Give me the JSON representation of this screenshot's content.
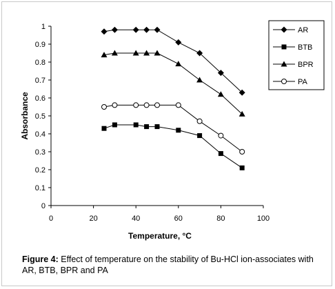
{
  "chart_data": {
    "type": "line",
    "title": "",
    "xlabel": "Temperature, °C",
    "ylabel": "Absorbance",
    "xlim": [
      0,
      100
    ],
    "ylim": [
      0,
      1
    ],
    "xticks": [
      "0",
      "20",
      "40",
      "60",
      "80",
      "100"
    ],
    "yticks": [
      "0",
      "0.1",
      "0.2",
      "0.3",
      "0.4",
      "0.5",
      "0.6",
      "0.7",
      "0.8",
      "0.9",
      "1"
    ],
    "grid": false,
    "legend_position": "top-right",
    "x": [
      25,
      30,
      40,
      45,
      50,
      60,
      70,
      80,
      90
    ],
    "series": [
      {
        "name": "AR",
        "marker": "diamond",
        "values": [
          0.97,
          0.98,
          0.98,
          0.98,
          0.98,
          0.91,
          0.85,
          0.74,
          0.63
        ]
      },
      {
        "name": "BTB",
        "marker": "square",
        "values": [
          0.43,
          0.45,
          0.45,
          0.44,
          0.44,
          0.42,
          0.39,
          0.29,
          0.21
        ]
      },
      {
        "name": "BPR",
        "marker": "triangle",
        "values": [
          0.84,
          0.85,
          0.85,
          0.85,
          0.85,
          0.79,
          0.7,
          0.62,
          0.51
        ]
      },
      {
        "name": "PA",
        "marker": "open-circle",
        "values": [
          0.55,
          0.56,
          0.56,
          0.56,
          0.56,
          0.56,
          0.47,
          0.39,
          0.3
        ]
      }
    ],
    "colors": {
      "line": "#000000",
      "axis": "#000000",
      "background": "#ffffff"
    }
  },
  "caption": {
    "label": "Figure 4:",
    "text": " Effect of temperature on the stability of Bu-HCl  ion-associates with AR, BTB, BPR and PA"
  }
}
